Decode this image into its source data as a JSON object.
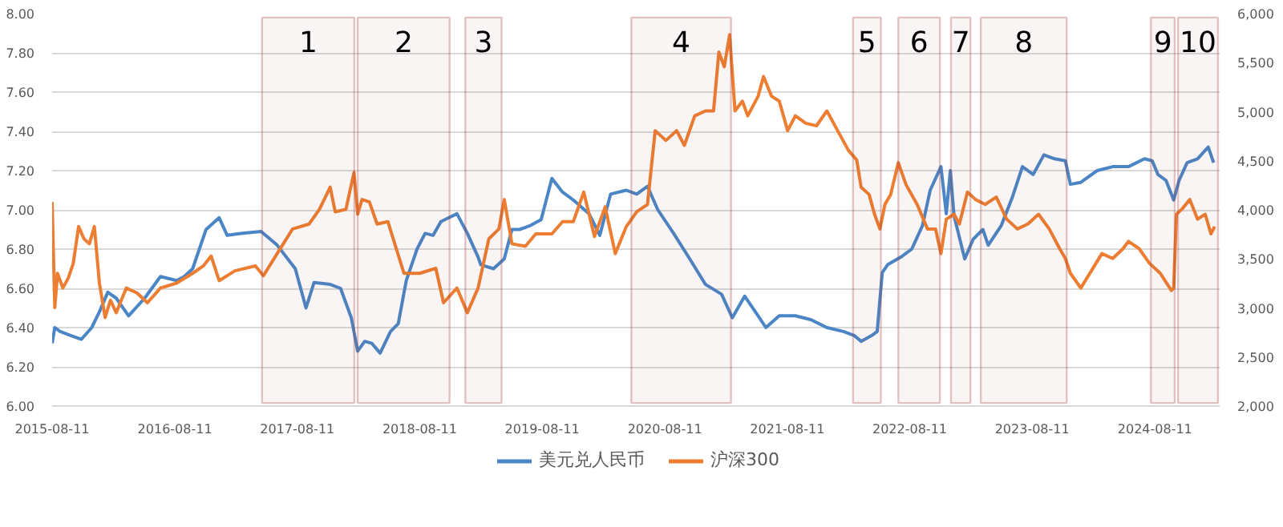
{
  "chart_data": {
    "type": "line",
    "legend": "bottom",
    "grid": "y",
    "xlim": [
      "2015-08-11",
      "2025-02-20"
    ],
    "xticks": [
      "2015-08-11",
      "2016-08-11",
      "2017-08-11",
      "2018-08-11",
      "2019-08-11",
      "2020-08-11",
      "2021-08-11",
      "2022-08-11",
      "2023-08-11",
      "2024-08-11"
    ],
    "ylim": [
      6,
      8
    ],
    "yticks": [
      {
        "value": 6,
        "label": "6.00"
      },
      {
        "value": 6.2,
        "label": "6.20"
      },
      {
        "value": 6.4,
        "label": "6.40"
      },
      {
        "value": 6.6,
        "label": "6.60"
      },
      {
        "value": 6.8,
        "label": "6.80"
      },
      {
        "value": 7,
        "label": "7.00"
      },
      {
        "value": 7.2,
        "label": "7.20"
      },
      {
        "value": 7.4,
        "label": "7.40"
      },
      {
        "value": 7.6,
        "label": "7.60"
      },
      {
        "value": 7.8,
        "label": "7.80"
      },
      {
        "value": 8,
        "label": "8.00"
      }
    ],
    "y2lim": [
      2000,
      6000
    ],
    "y2ticks": [
      {
        "value": 2000,
        "label": "2,000"
      },
      {
        "value": 2500,
        "label": "2,500"
      },
      {
        "value": 3000,
        "label": "3,000"
      },
      {
        "value": 3500,
        "label": "3,500"
      },
      {
        "value": 4000,
        "label": "4,000"
      },
      {
        "value": 4500,
        "label": "4,500"
      },
      {
        "value": 5000,
        "label": "5,000"
      },
      {
        "value": 5500,
        "label": "5,500"
      },
      {
        "value": 6000,
        "label": "6,000"
      }
    ],
    "series": [
      {
        "name": "美元兑人民币",
        "color": "#4a86c6",
        "x": [
          "2015-08-11",
          "2015-08-19",
          "2015-09-04",
          "2015-10-05",
          "2015-11-06",
          "2015-12-07",
          "2015-12-30",
          "2016-01-24",
          "2016-02-18",
          "2016-03-26",
          "2016-05-13",
          "2016-06-29",
          "2016-08-16",
          "2016-09-08",
          "2016-10-03",
          "2016-11-12",
          "2016-12-21",
          "2017-01-14",
          "2017-02-23",
          "2017-04-25",
          "2017-06-12",
          "2017-08-05",
          "2017-09-06",
          "2017-09-30",
          "2017-11-17",
          "2017-12-18",
          "2018-01-19",
          "2018-02-07",
          "2018-02-28",
          "2018-03-21",
          "2018-04-15",
          "2018-05-16",
          "2018-06-08",
          "2018-07-02",
          "2018-08-03",
          "2018-08-27",
          "2018-09-20",
          "2018-10-13",
          "2018-11-06",
          "2018-11-30",
          "2018-12-31",
          "2019-02-01",
          "2019-02-09",
          "2019-03-19",
          "2019-04-20",
          "2019-05-13",
          "2019-06-05",
          "2019-07-07",
          "2019-08-08",
          "2019-09-09",
          "2019-10-11",
          "2019-11-12",
          "2019-12-29",
          "2020-01-30",
          "2020-03-02",
          "2020-04-18",
          "2020-05-19",
          "2020-06-20",
          "2020-07-21",
          "2020-09-06",
          "2020-10-24",
          "2020-12-10",
          "2021-01-27",
          "2021-02-28",
          "2021-04-06",
          "2021-05-16",
          "2021-06-08",
          "2021-07-18",
          "2021-09-04",
          "2021-10-21",
          "2021-12-07",
          "2022-01-25",
          "2022-02-26",
          "2022-03-19",
          "2022-04-20",
          "2022-05-06",
          "2022-05-21",
          "2022-06-06",
          "2022-07-16",
          "2022-08-17",
          "2022-09-18",
          "2022-10-11",
          "2022-11-12",
          "2022-11-28",
          "2022-12-10",
          "2022-12-21",
          "2023-01-22",
          "2023-02-16",
          "2023-03-17",
          "2023-04-02",
          "2023-05-11",
          "2023-06-12",
          "2023-07-13",
          "2023-08-14",
          "2023-09-15",
          "2023-10-17",
          "2023-11-18",
          "2023-12-03",
          "2024-01-03",
          "2024-02-21",
          "2024-04-07",
          "2024-05-24",
          "2024-07-11",
          "2024-08-03",
          "2024-08-20",
          "2024-09-13",
          "2024-10-06",
          "2024-10-22",
          "2024-11-15",
          "2024-12-16",
          "2025-01-17",
          "2025-02-02"
        ],
        "values": [
          6.32,
          6.4,
          6.38,
          6.36,
          6.34,
          6.4,
          6.48,
          6.58,
          6.55,
          6.46,
          6.55,
          6.66,
          6.64,
          6.66,
          6.7,
          6.9,
          6.96,
          6.87,
          6.88,
          6.89,
          6.82,
          6.7,
          6.5,
          6.63,
          6.62,
          6.6,
          6.45,
          6.28,
          6.33,
          6.32,
          6.27,
          6.38,
          6.42,
          6.64,
          6.8,
          6.88,
          6.87,
          6.94,
          6.96,
          6.98,
          6.88,
          6.76,
          6.72,
          6.7,
          6.75,
          6.9,
          6.9,
          6.92,
          6.95,
          7.16,
          7.09,
          7.05,
          6.98,
          6.87,
          7.08,
          7.1,
          7.08,
          7.12,
          7.0,
          6.88,
          6.75,
          6.62,
          6.57,
          6.45,
          6.56,
          6.46,
          6.4,
          6.46,
          6.46,
          6.44,
          6.4,
          6.38,
          6.36,
          6.33,
          6.36,
          6.38,
          6.68,
          6.72,
          6.76,
          6.8,
          6.92,
          7.1,
          7.22,
          6.98,
          7.2,
          6.97,
          6.75,
          6.85,
          6.9,
          6.82,
          6.92,
          7.06,
          7.22,
          7.18,
          7.28,
          7.26,
          7.25,
          7.13,
          7.14,
          7.2,
          7.22,
          7.22,
          7.26,
          7.25,
          7.18,
          7.15,
          7.05,
          7.15,
          7.24,
          7.26,
          7.32,
          7.24
        ]
      },
      {
        "name": "沪深300",
        "color": "#ed7d31",
        "axis": "y2",
        "x": [
          "2015-08-11",
          "2015-08-19",
          "2015-08-27",
          "2015-09-12",
          "2015-09-28",
          "2015-10-13",
          "2015-10-29",
          "2015-11-14",
          "2015-11-30",
          "2015-12-15",
          "2015-12-30",
          "2016-01-16",
          "2016-02-01",
          "2016-02-18",
          "2016-03-19",
          "2016-04-20",
          "2016-05-21",
          "2016-06-29",
          "2016-08-16",
          "2016-10-03",
          "2016-11-04",
          "2016-11-27",
          "2016-12-21",
          "2017-02-06",
          "2017-04-08",
          "2017-05-02",
          "2017-06-12",
          "2017-07-28",
          "2017-09-15",
          "2017-10-16",
          "2017-11-17",
          "2017-12-02",
          "2018-01-03",
          "2018-01-27",
          "2018-02-07",
          "2018-02-20",
          "2018-03-14",
          "2018-04-06",
          "2018-05-08",
          "2018-06-25",
          "2018-08-11",
          "2018-09-28",
          "2018-10-21",
          "2018-11-30",
          "2018-12-31",
          "2019-02-01",
          "2019-03-05",
          "2019-04-04",
          "2019-04-20",
          "2019-05-13",
          "2019-06-22",
          "2019-07-23",
          "2019-09-09",
          "2019-10-11",
          "2019-11-12",
          "2019-12-13",
          "2020-01-14",
          "2020-02-15",
          "2020-03-16",
          "2020-04-18",
          "2020-05-19",
          "2020-06-20",
          "2020-07-13",
          "2020-08-14",
          "2020-09-15",
          "2020-10-08",
          "2020-11-08",
          "2020-12-10",
          "2021-01-03",
          "2021-01-19",
          "2021-02-04",
          "2021-02-20",
          "2021-03-08",
          "2021-03-30",
          "2021-04-15",
          "2021-05-16",
          "2021-06-01",
          "2021-06-25",
          "2021-07-18",
          "2021-08-12",
          "2021-09-04",
          "2021-10-05",
          "2021-11-06",
          "2021-12-07",
          "2022-01-08",
          "2022-02-09",
          "2022-03-06",
          "2022-03-19",
          "2022-04-12",
          "2022-04-28",
          "2022-05-14",
          "2022-05-29",
          "2022-06-15",
          "2022-07-08",
          "2022-07-31",
          "2022-09-02",
          "2022-10-03",
          "2022-10-27",
          "2022-11-12",
          "2022-11-28",
          "2022-12-21",
          "2023-01-06",
          "2023-01-30",
          "2023-02-23",
          "2023-03-24",
          "2023-04-26",
          "2023-05-27",
          "2023-06-28",
          "2023-07-29",
          "2023-08-30",
          "2023-10-01",
          "2023-11-01",
          "2023-11-18",
          "2023-12-03",
          "2024-01-03",
          "2024-03-06",
          "2024-04-07",
          "2024-05-08",
          "2024-05-24",
          "2024-06-25",
          "2024-07-26",
          "2024-08-27",
          "2024-09-29",
          "2024-10-06",
          "2024-10-14",
          "2024-10-30",
          "2024-11-23",
          "2024-12-16",
          "2025-01-08",
          "2025-01-25",
          "2025-02-05"
        ],
        "values": [
          4080,
          3003,
          3353,
          3203,
          3303,
          3454,
          3830,
          3704,
          3654,
          3830,
          3253,
          2902,
          3078,
          2952,
          3203,
          3153,
          3053,
          3203,
          3253,
          3353,
          3429,
          3529,
          3278,
          3379,
          3429,
          3328,
          3554,
          3805,
          3855,
          4005,
          4231,
          3980,
          4005,
          4381,
          3955,
          4105,
          4080,
          3855,
          3880,
          3353,
          3353,
          3404,
          3053,
          3203,
          2952,
          3203,
          3704,
          3805,
          4105,
          3654,
          3629,
          3755,
          3755,
          3880,
          3880,
          4181,
          3729,
          4030,
          3554,
          3830,
          3980,
          4055,
          4807,
          4707,
          4807,
          4657,
          4958,
          5008,
          5008,
          5609,
          5459,
          5785,
          5008,
          5108,
          4958,
          5158,
          5359,
          5158,
          5108,
          4807,
          4958,
          4883,
          4857,
          5008,
          4807,
          4607,
          4507,
          4231,
          4156,
          3955,
          3805,
          4055,
          4156,
          4481,
          4256,
          4055,
          3805,
          3805,
          3554,
          3905,
          3955,
          3855,
          4181,
          4105,
          4055,
          4130,
          3905,
          3805,
          3855,
          3955,
          3805,
          3604,
          3504,
          3353,
          3203,
          3554,
          3504,
          3604,
          3679,
          3604,
          3454,
          3353,
          3178,
          3203,
          3955,
          4005,
          4105,
          3905,
          3955,
          3755,
          3830
        ]
      }
    ],
    "bands": [
      {
        "axis": "x",
        "from": "2017-04-28",
        "to": "2018-01-28",
        "label": "1",
        "color": "#a3403c"
      },
      {
        "axis": "x",
        "from": "2018-02-07",
        "to": "2018-11-08",
        "label": "2",
        "color": "#a3403c"
      },
      {
        "axis": "x",
        "from": "2018-12-25",
        "to": "2019-04-12",
        "label": "3",
        "color": "#a3403c"
      },
      {
        "axis": "x",
        "from": "2020-05-03",
        "to": "2021-02-24",
        "label": "4",
        "color": "#a3403c"
      },
      {
        "axis": "x",
        "from": "2022-02-23",
        "to": "2022-05-17",
        "label": "5",
        "color": "#a3403c"
      },
      {
        "axis": "x",
        "from": "2022-07-08",
        "to": "2022-11-09",
        "label": "6",
        "color": "#a3403c"
      },
      {
        "axis": "x",
        "from": "2022-12-12",
        "to": "2023-02-08",
        "label": "7",
        "color": "#a3403c"
      },
      {
        "axis": "x",
        "from": "2023-03-11",
        "to": "2023-11-22",
        "label": "8",
        "color": "#a3403c"
      },
      {
        "axis": "x",
        "from": "2024-07-30",
        "to": "2024-10-09",
        "label": "9",
        "color": "#a3403c"
      },
      {
        "axis": "x",
        "from": "2024-10-19",
        "to": "2025-02-15",
        "label": "10",
        "color": "#a3403c"
      }
    ]
  }
}
